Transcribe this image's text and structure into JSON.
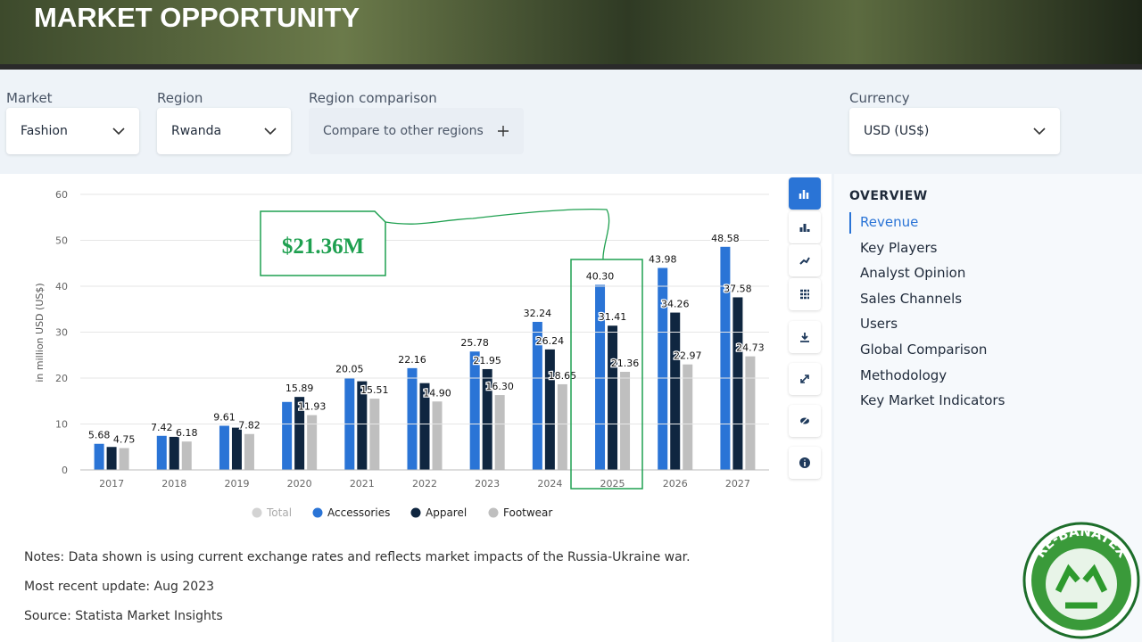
{
  "header": {
    "title": "MARKET OPPORTUNITY"
  },
  "filters": [
    {
      "label": "Market",
      "value": "Fashion"
    },
    {
      "label": "Region",
      "value": "Rwanda"
    },
    {
      "label": "Region comparison",
      "value": "Compare to other regions"
    },
    {
      "label": "Currency",
      "value": "USD (US$)"
    }
  ],
  "chart_data": {
    "type": "bar",
    "y_label": "in million USD (US$)",
    "categories": [
      "2017",
      "2018",
      "2019",
      "2020",
      "2021",
      "2022",
      "2023",
      "2024",
      "2025",
      "2026",
      "2027"
    ],
    "ylim": [
      0,
      60
    ],
    "yticks": [
      0,
      10,
      20,
      30,
      40,
      50,
      60
    ],
    "grid": true,
    "legend_hidden": {
      "name": "Total",
      "color": "#d3d3d3"
    },
    "series": [
      {
        "name": "Accessories",
        "color": "#2a74d6",
        "values": [
          5.68,
          7.42,
          9.61,
          14.8,
          20.05,
          22.16,
          25.78,
          32.24,
          40.3,
          43.98,
          48.58
        ],
        "value_labels": [
          "5.68",
          "7.42",
          "9.61",
          null,
          "20.05",
          "22.16",
          "25.78",
          "32.24",
          "40.30",
          "43.98",
          "48.58"
        ]
      },
      {
        "name": "Apparel",
        "color": "#0f2640",
        "values": [
          5.0,
          7.2,
          9.2,
          15.89,
          19.3,
          18.9,
          21.95,
          26.24,
          31.41,
          34.26,
          37.58
        ],
        "value_labels": [
          null,
          null,
          null,
          "15.89",
          null,
          null,
          "21.95",
          "26.24",
          "31.41",
          "34.26",
          "37.58"
        ]
      },
      {
        "name": "Footwear",
        "color": "#bfbfbf",
        "values": [
          4.75,
          6.18,
          7.82,
          11.93,
          15.51,
          14.9,
          16.3,
          18.65,
          21.36,
          22.97,
          24.73
        ],
        "value_labels": [
          "4.75",
          "6.18",
          "7.82",
          "11.93",
          "15.51",
          "14.90",
          "16.30",
          "18.65",
          "21.36",
          "22.97",
          "24.73"
        ]
      }
    ],
    "annotation": "$21.36M"
  },
  "overview": {
    "title": "OVERVIEW",
    "items": [
      "Revenue",
      "Key Players",
      "Analyst Opinion",
      "Sales Channels",
      "Users",
      "Global Comparison",
      "Methodology",
      "Key Market Indicators"
    ]
  },
  "notes": [
    "Notes: Data shown is using current exchange rates and reflects market impacts of the Russia-Ukraine war.",
    "Most recent update: Aug 2023",
    "Source: Statista Market Insights"
  ],
  "logo": {
    "text": "RE-BANATEX"
  }
}
